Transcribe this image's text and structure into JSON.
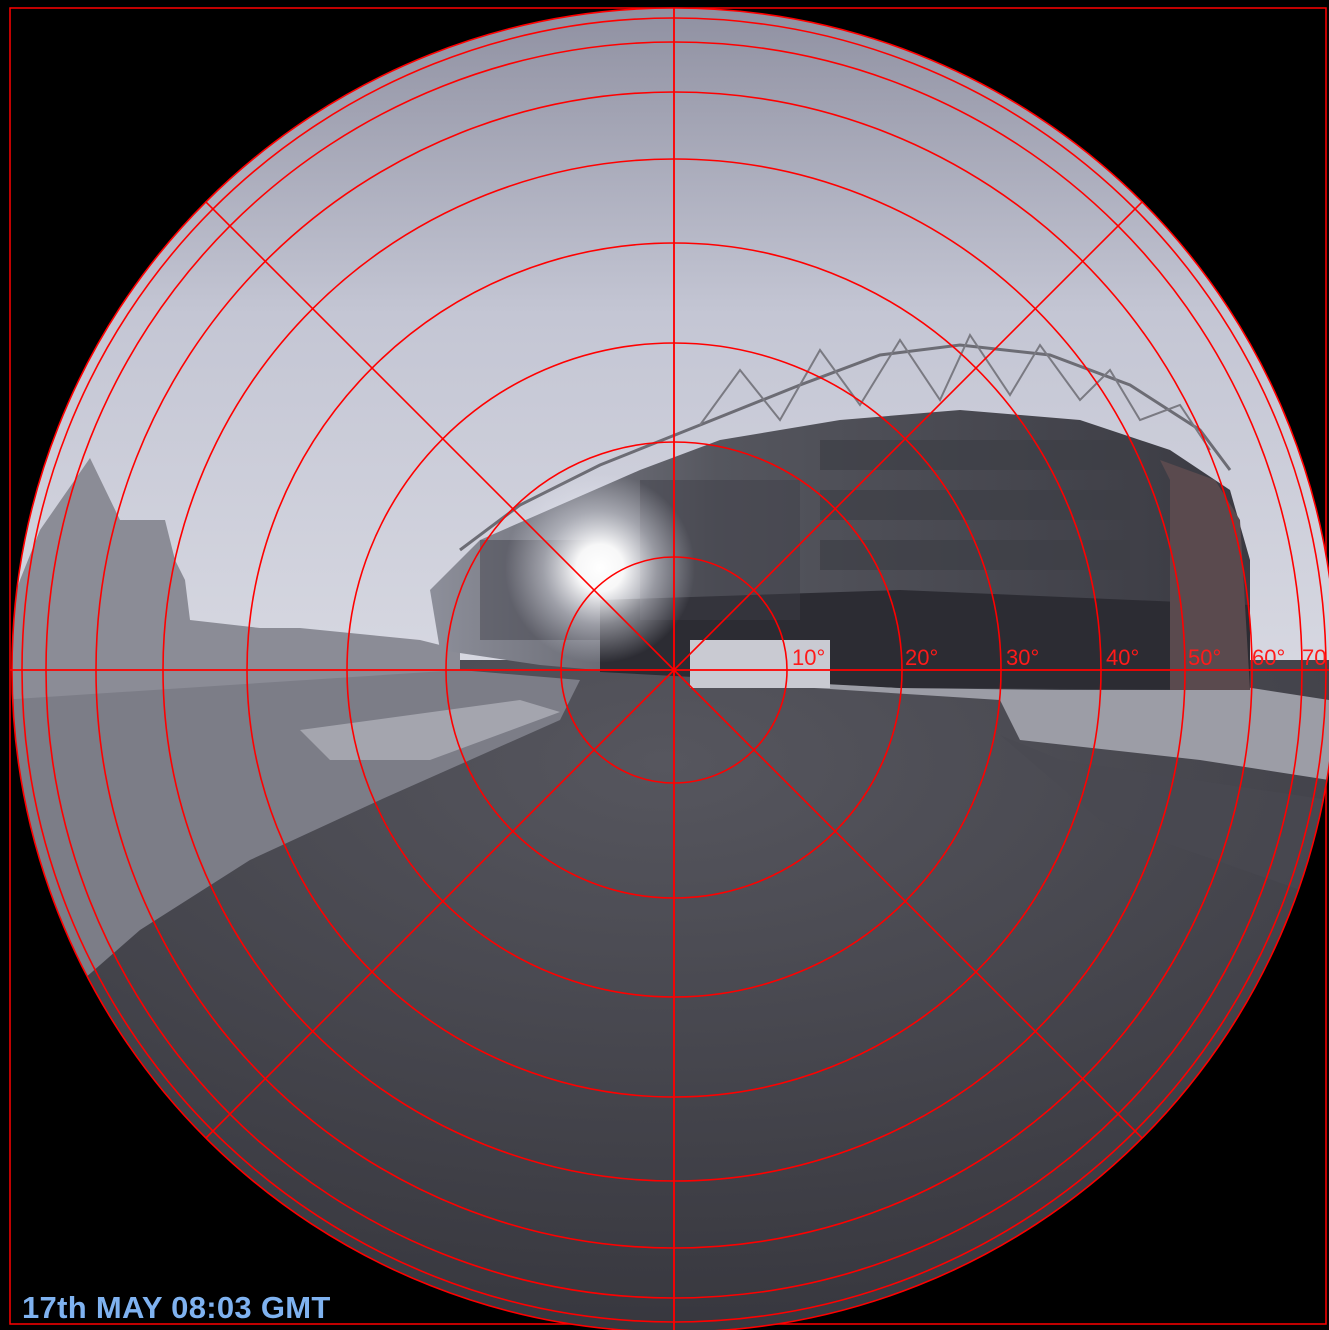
{
  "caption": "17th MAY 08:03 GMT",
  "rings": {
    "labels": [
      "10°",
      "20°",
      "30°",
      "40°",
      "50°",
      "60°",
      "70"
    ]
  },
  "colors": {
    "frame": "#000000",
    "grid": "#ff0000",
    "caption": "#7fb2f0",
    "sky": "#b9bccb",
    "ground": "#3c3c44"
  },
  "icons": {
    "sun": "sun-glare-icon"
  }
}
